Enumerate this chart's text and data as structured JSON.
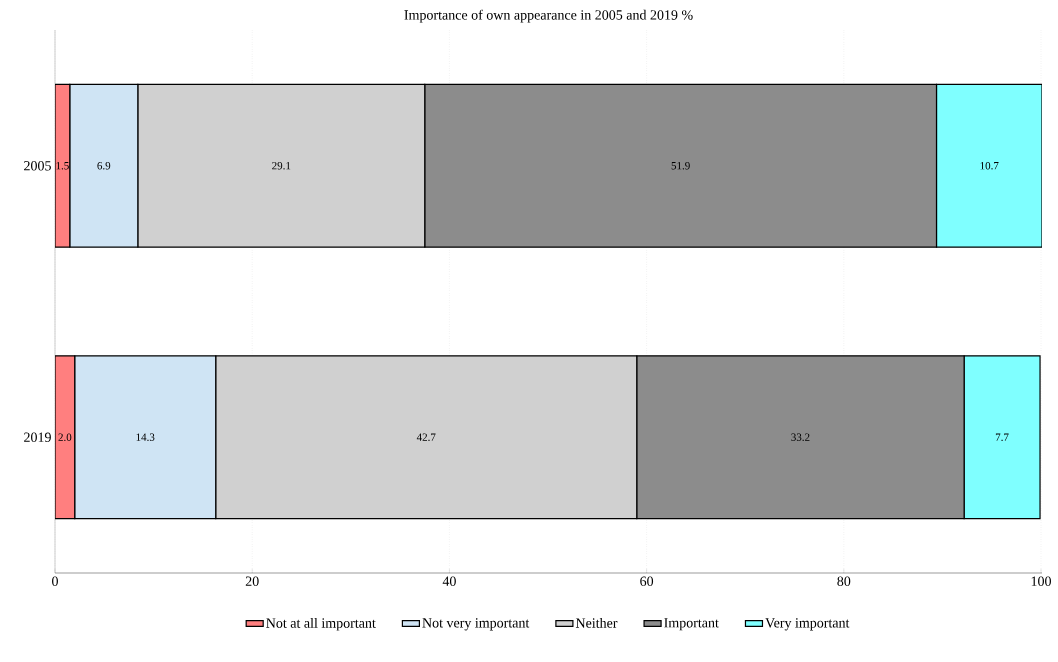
{
  "chart_data": {
    "type": "bar",
    "orientation": "horizontal",
    "stacked": true,
    "title": "Importance of own appearance in 2005 and 2019 %",
    "categories": [
      "2005",
      "2019"
    ],
    "series": [
      {
        "name": "Not at all important",
        "color": "#ff7f7f",
        "values": [
          1.5,
          2.0
        ],
        "value_labels": [
          "1.5",
          "2.0"
        ]
      },
      {
        "name": "Not very important",
        "color": "#cfe4f4",
        "values": [
          6.9,
          14.3
        ],
        "value_labels": [
          "6.9",
          "14.3"
        ]
      },
      {
        "name": "Neither",
        "color": "#d0d0d0",
        "values": [
          29.1,
          42.7
        ],
        "value_labels": [
          "29.1",
          "42.7"
        ]
      },
      {
        "name": "Important",
        "color": "#8c8c8c",
        "values": [
          51.9,
          33.2
        ],
        "value_labels": [
          "51.9",
          "33.2"
        ]
      },
      {
        "name": "Very important",
        "color": "#7fffff",
        "values": [
          10.7,
          7.7
        ],
        "value_labels": [
          "10.7",
          "7.7"
        ]
      }
    ],
    "xlim": [
      0,
      100.1
    ],
    "xticks": [
      0,
      20,
      40,
      60,
      80,
      100
    ],
    "grid": "x",
    "legend": "bottom"
  }
}
